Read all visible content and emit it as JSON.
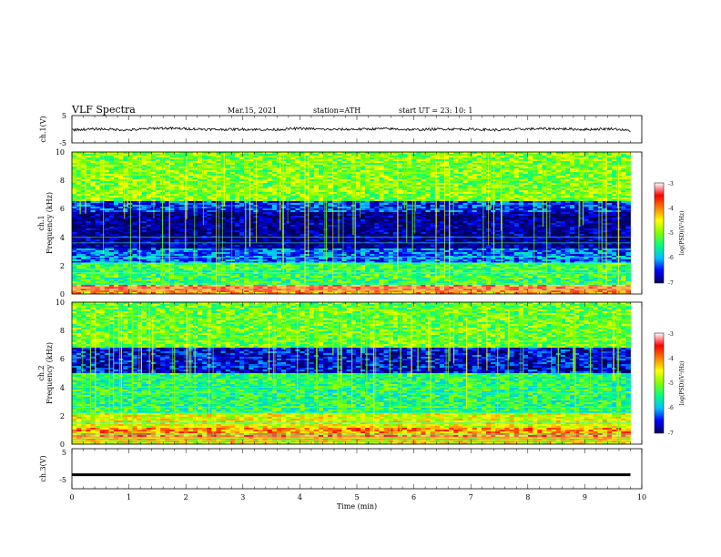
{
  "header": {
    "title": "VLF  Spectra",
    "date": "Mar.15, 2021",
    "station": "station=ATH",
    "start": "start  UT  =    23: 10: 1"
  },
  "chart_data": [
    {
      "type": "line",
      "panel": "ch1-waveform",
      "ylabel": "ch.1(V)",
      "ylim": [
        -5,
        5
      ],
      "yticks": [
        "5",
        "-5"
      ],
      "x": [
        0,
        0.5,
        1,
        1.5,
        2,
        2.5,
        3,
        3.5,
        4,
        4.5,
        5,
        5.5,
        6,
        6.5,
        7,
        7.5,
        8,
        8.5,
        9,
        9.5,
        9.8
      ],
      "y": [
        -0.2,
        0.1,
        -0.3,
        0.4,
        0.2,
        -0.1,
        0.0,
        -0.2,
        0.3,
        -0.1,
        0.0,
        0.2,
        -0.2,
        0.1,
        0.0,
        -0.3,
        0.1,
        0.2,
        -0.1,
        0.2,
        -0.6
      ]
    },
    {
      "type": "heatmap",
      "panel": "ch1-spectrogram",
      "ylabel": "ch.1\nFrequency  (kHz)",
      "xlim": [
        0,
        10
      ],
      "ylim": [
        0,
        10
      ],
      "yticks": [
        "0",
        "2",
        "4",
        "6",
        "8",
        "10"
      ],
      "colorbar": {
        "label": "log(PSD)(V²/Hz)",
        "ticks": [
          "-3",
          "-4",
          "-5",
          "-6",
          "-7"
        ],
        "range": [
          -7,
          -3
        ]
      },
      "bands_khz": [
        [
          0,
          0.6,
          -4.2
        ],
        [
          0.6,
          2.2,
          -5.3
        ],
        [
          2.2,
          3.2,
          -6.2
        ],
        [
          3.2,
          5.8,
          -6.9
        ],
        [
          5.8,
          6.6,
          -6.4
        ],
        [
          6.6,
          10,
          -5.0
        ]
      ]
    },
    {
      "type": "heatmap",
      "panel": "ch2-spectrogram",
      "ylabel": "ch.2\nFrequency  (kHz)",
      "xlim": [
        0,
        10
      ],
      "ylim": [
        0,
        10
      ],
      "yticks": [
        "0",
        "2",
        "4",
        "6",
        "8",
        "10"
      ],
      "colorbar": {
        "label": "log(PSD)(V²/Hz)",
        "ticks": [
          "-3",
          "-4",
          "-5",
          "-6",
          "-7"
        ],
        "range": [
          -7,
          -3
        ]
      },
      "bands_khz": [
        [
          0,
          0.5,
          -4.6
        ],
        [
          0.5,
          1.2,
          -4.1
        ],
        [
          1.2,
          2.2,
          -4.6
        ],
        [
          2.2,
          5.0,
          -5.4
        ],
        [
          5.0,
          6.8,
          -6.6
        ],
        [
          6.8,
          10,
          -5.1
        ]
      ]
    },
    {
      "type": "line",
      "panel": "ch3-waveform",
      "ylabel": "ch.3(V)",
      "ylim": [
        -5,
        5
      ],
      "yticks": [
        "5",
        "-5"
      ],
      "x": [
        0,
        9.8
      ],
      "y": [
        -1.5,
        -1.5
      ]
    }
  ],
  "xaxis": {
    "label": "Time  (min)",
    "ticks": [
      "0",
      "1",
      "2",
      "3",
      "4",
      "5",
      "6",
      "7",
      "8",
      "9",
      "10"
    ],
    "range": [
      0,
      10
    ]
  },
  "colors": {
    "colormap": [
      "#000060",
      "#0000ff",
      "#00c0ff",
      "#00ff80",
      "#80ff00",
      "#ffff00",
      "#ff8000",
      "#ff0000",
      "#ffffff"
    ]
  }
}
